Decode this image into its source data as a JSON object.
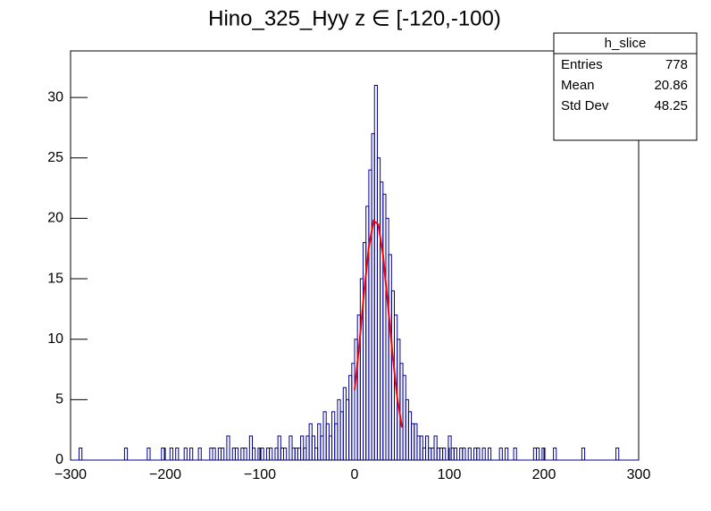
{
  "chart_data": {
    "type": "histogram",
    "title": "Hino_325_Hyy z  ∈ [-120,-100)",
    "color": "#000099",
    "bins": [
      -300,
      -297,
      -294,
      -291,
      -288,
      -285,
      -282,
      -279,
      -276,
      -273,
      -270,
      -267,
      -264,
      -261,
      -258,
      -255,
      -252,
      -249,
      -246,
      -243,
      -240,
      -237,
      -234,
      -231,
      -228,
      -225,
      -222,
      -219,
      -216,
      -213,
      -210,
      -207,
      -204,
      -201,
      -198,
      -195,
      -192,
      -189,
      -186,
      -183,
      -180,
      -177,
      -174,
      -171,
      -168,
      -165,
      -162,
      -159,
      -156,
      -153,
      -150,
      -147,
      -144,
      -141,
      -138,
      -135,
      -132,
      -129,
      -126,
      -123,
      -120,
      -117,
      -114,
      -111,
      -108,
      -105,
      -102,
      -99,
      -96,
      -93,
      -90,
      -87,
      -84,
      -81,
      -78,
      -75,
      -72,
      -69,
      -66,
      -63,
      -60,
      -57,
      -54,
      -51,
      -48,
      -45,
      -42,
      -39,
      -36,
      -33,
      -30,
      -27,
      -24,
      -21,
      -18,
      -15,
      -12,
      -9,
      -6,
      -3,
      0,
      3,
      6,
      9,
      12,
      15,
      18,
      21,
      24,
      27,
      30,
      33,
      36,
      39,
      42,
      45,
      48,
      51,
      54,
      57,
      60,
      63,
      66,
      69,
      72,
      75,
      78,
      81,
      84,
      87,
      90,
      93,
      96,
      99,
      102,
      105,
      108,
      111,
      114,
      117,
      120,
      123,
      126,
      129,
      132,
      135,
      138,
      141,
      144,
      147,
      150,
      153,
      156,
      159,
      162,
      165,
      168,
      171,
      174,
      177,
      180,
      183,
      186,
      189,
      192,
      195,
      198,
      201,
      204,
      207,
      210,
      213,
      216,
      219,
      222,
      225,
      228,
      231,
      234,
      237,
      240,
      243,
      246,
      249,
      252,
      255,
      258,
      261,
      264,
      267,
      270,
      273,
      276,
      279,
      282,
      285,
      288,
      291,
      294,
      297,
      300
    ],
    "values": [
      0,
      0,
      0,
      1,
      0,
      0,
      0,
      0,
      0,
      0,
      0,
      0,
      0,
      0,
      0,
      0,
      0,
      0,
      0,
      1,
      0,
      0,
      0,
      0,
      0,
      0,
      0,
      1,
      0,
      0,
      0,
      0,
      1,
      0,
      0,
      1,
      0,
      1,
      0,
      0,
      1,
      0,
      1,
      0,
      0,
      1,
      0,
      0,
      0,
      1,
      1,
      0,
      1,
      1,
      0,
      2,
      0,
      1,
      1,
      0,
      1,
      1,
      0,
      2,
      1,
      0,
      1,
      1,
      0,
      1,
      1,
      0,
      1,
      2,
      1,
      1,
      0,
      2,
      1,
      1,
      1,
      2,
      1,
      2,
      3,
      2,
      1,
      3,
      2,
      4,
      3,
      2,
      4,
      3,
      5,
      4,
      6,
      5,
      7,
      8,
      10,
      12,
      15,
      18,
      21,
      24,
      27,
      31,
      25,
      23,
      22,
      20,
      17,
      14,
      12,
      10,
      8,
      7,
      5,
      4,
      3,
      3,
      2,
      2,
      1,
      2,
      1,
      1,
      2,
      1,
      1,
      1,
      0,
      2,
      1,
      1,
      0,
      1,
      1,
      0,
      1,
      0,
      1,
      1,
      0,
      1,
      0,
      1,
      0,
      0,
      0,
      1,
      0,
      1,
      0,
      0,
      1,
      0,
      0,
      0,
      0,
      0,
      0,
      1,
      1,
      0,
      1,
      0,
      0,
      0,
      1,
      0,
      0,
      0,
      0,
      0,
      0,
      0,
      0,
      0,
      1,
      0,
      0,
      0,
      0,
      0,
      0,
      0,
      0,
      0,
      0,
      0,
      1,
      0,
      0,
      0,
      0,
      0,
      0,
      0
    ],
    "fit": {
      "color": "#ff0000",
      "x": [
        0,
        5,
        10,
        15,
        20,
        25,
        30,
        35,
        40,
        45,
        50
      ],
      "y": [
        5.8,
        9.6,
        13.9,
        17.6,
        19.8,
        19.5,
        17.0,
        13.0,
        8.8,
        5.2,
        2.7
      ]
    },
    "xlim": [
      -300,
      300
    ],
    "xticks": [
      {
        "value": -300,
        "label": "−300"
      },
      {
        "value": -200,
        "label": "−200"
      },
      {
        "value": -100,
        "label": "−100"
      },
      0,
      100,
      200,
      300
    ],
    "ylim": [
      0,
      33.85
    ],
    "yticks": [
      0,
      5,
      10,
      15,
      20,
      25,
      30
    ],
    "stats": {
      "title": "h_slice",
      "rows": [
        [
          "Entries",
          "778"
        ],
        [
          "Mean",
          "20.86"
        ],
        [
          "Std Dev",
          "48.25"
        ]
      ]
    }
  }
}
